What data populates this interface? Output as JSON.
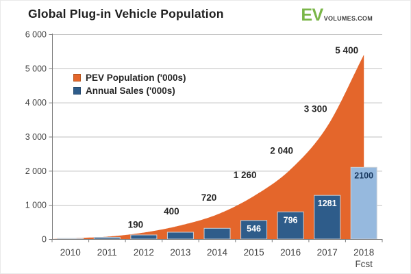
{
  "header": {
    "title": "Global Plug-in Vehicle Population",
    "logo": {
      "ev": "EV",
      "suffix": "VOLUMES.COM",
      "ev_color": "#7ab648",
      "suffix_color": "#3c3c3c"
    }
  },
  "chart_data": {
    "type": "combo",
    "title": "Global Plug-in Vehicle Population",
    "categories": [
      "2010",
      "2011",
      "2012",
      "2013",
      "2014",
      "2015",
      "2016",
      "2017",
      "2018"
    ],
    "forecast_note": "Fcst",
    "series": [
      {
        "name": "PEV Population ('000s)",
        "type": "area",
        "color": "#e4662b",
        "values": [
          25,
          70,
          190,
          400,
          720,
          1260,
          2040,
          3300,
          5400
        ],
        "labels": [
          null,
          null,
          "190",
          "400",
          "720",
          "1 260",
          "2 040",
          "3 300",
          "5 400"
        ],
        "label_color": "#262626"
      },
      {
        "name": "Annual Sales ('000s)",
        "type": "bar",
        "color": "#2e5c8a",
        "forecast_color": "#96b9de",
        "values": [
          20,
          50,
          120,
          200,
          315,
          546,
          796,
          1281,
          2100
        ],
        "labels": [
          null,
          null,
          null,
          null,
          null,
          "546",
          "796",
          "1281",
          "2100"
        ],
        "label_color": "#ffffff",
        "forecast_label_color": "#17375e",
        "bar_outline_color": "#cad0d8"
      }
    ],
    "ylim": [
      0,
      6000
    ],
    "yticks": {
      "values": [
        0,
        1000,
        2000,
        3000,
        4000,
        5000,
        6000
      ],
      "labels": [
        "0",
        "1 000",
        "2 000",
        "3 000",
        "4 000",
        "5 000",
        "6 000"
      ]
    },
    "grid": true,
    "grid_color": "#bfbfbf",
    "axis_color": "#7a7a7a",
    "tick_label_color": "#3f3f3f",
    "legend_position": "top-left-inside",
    "unlabeled_values_are_estimates": true
  }
}
